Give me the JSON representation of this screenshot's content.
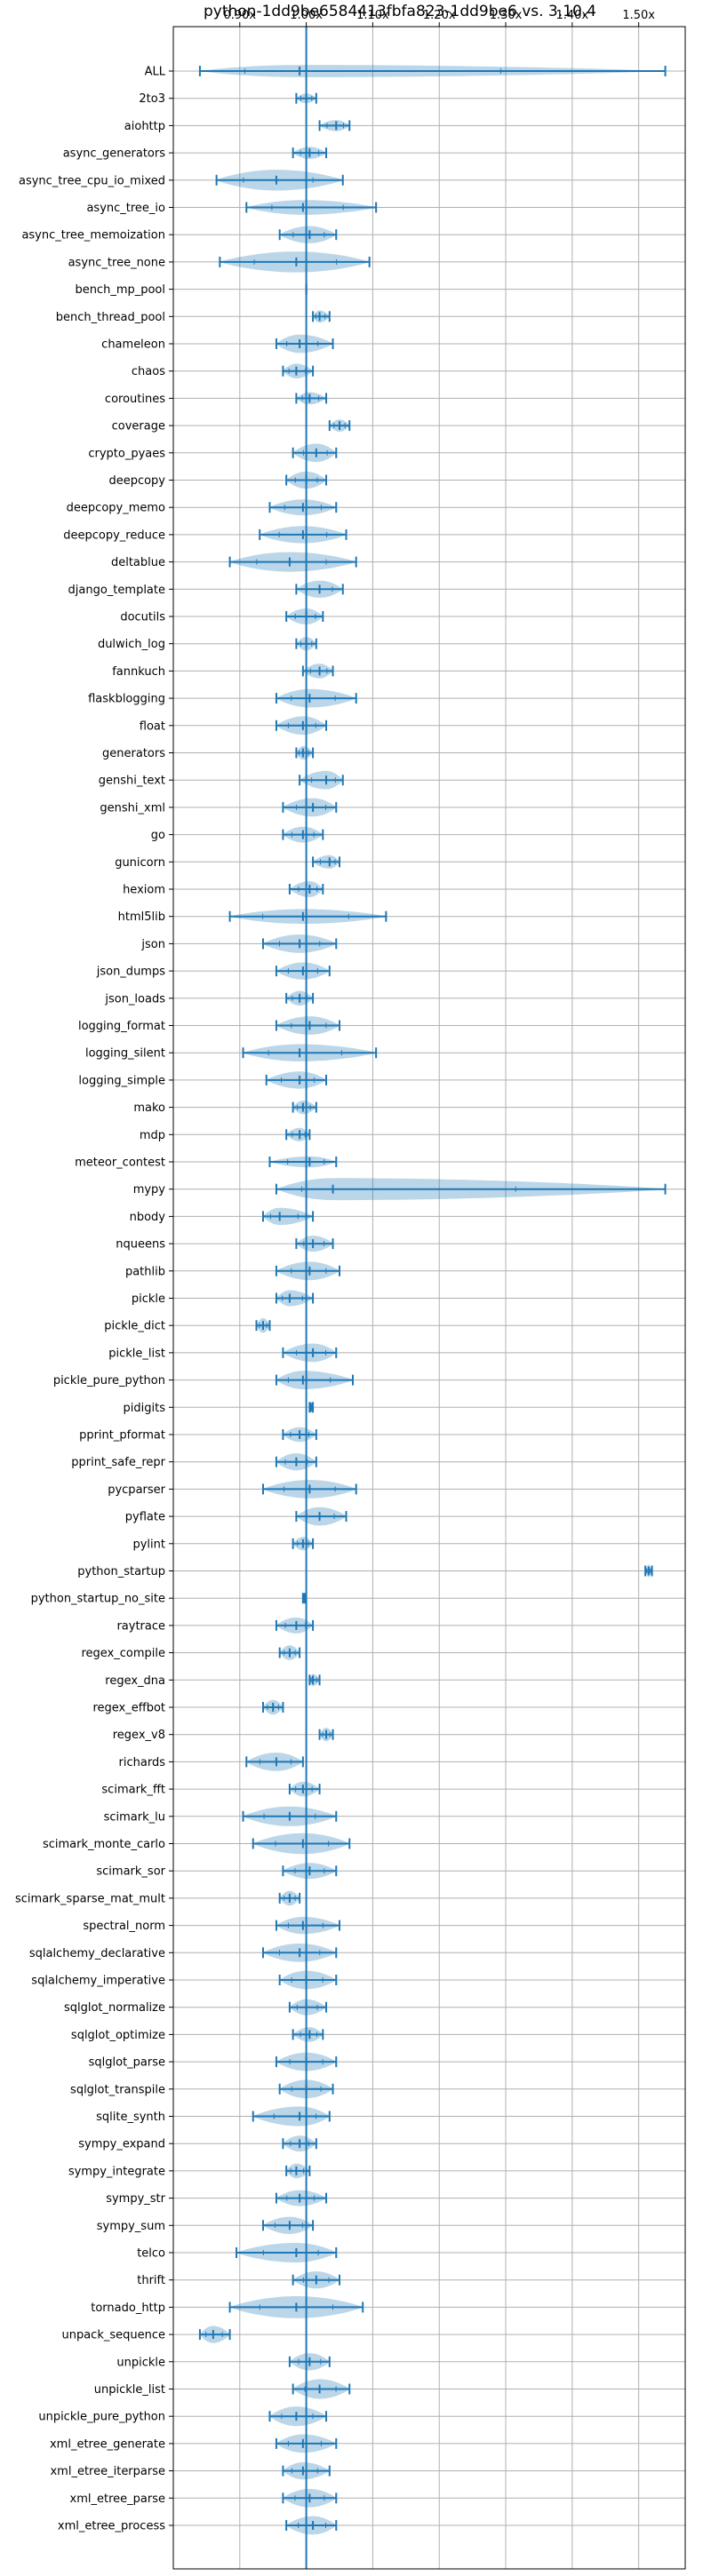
{
  "chart_data": {
    "type": "violin",
    "title": "python-1dd9be6584413fbfa823-1dd9be6 vs. 3.10.4",
    "xlabel": "",
    "ylabel": "",
    "xlim": [
      0.8,
      1.57
    ],
    "x_ticks": [
      0.9,
      1.0,
      1.1,
      1.2,
      1.3,
      1.4,
      1.5
    ],
    "x_tick_labels": [
      "0.90x",
      "1.00x",
      "1.10x",
      "1.20x",
      "1.30x",
      "1.40x",
      "1.50x"
    ],
    "x_axis_position": "top",
    "reference_value": 1.0,
    "grid": true,
    "legend": "none",
    "colors": {
      "violin": "#1f77b4",
      "reference": "#1f77b4",
      "grid": "#b0b0b0"
    },
    "categories": [
      "ALL",
      "2to3",
      "aiohttp",
      "async_generators",
      "async_tree_cpu_io_mixed",
      "async_tree_io",
      "async_tree_memoization",
      "async_tree_none",
      "bench_mp_pool",
      "bench_thread_pool",
      "chameleon",
      "chaos",
      "coroutines",
      "coverage",
      "crypto_pyaes",
      "deepcopy",
      "deepcopy_memo",
      "deepcopy_reduce",
      "deltablue",
      "django_template",
      "docutils",
      "dulwich_log",
      "fannkuch",
      "flaskblogging",
      "float",
      "generators",
      "genshi_text",
      "genshi_xml",
      "go",
      "gunicorn",
      "hexiom",
      "html5lib",
      "json",
      "json_dumps",
      "json_loads",
      "logging_format",
      "logging_silent",
      "logging_simple",
      "mako",
      "mdp",
      "meteor_contest",
      "mypy",
      "nbody",
      "nqueens",
      "pathlib",
      "pickle",
      "pickle_dict",
      "pickle_list",
      "pickle_pure_python",
      "pidigits",
      "pprint_pformat",
      "pprint_safe_repr",
      "pycparser",
      "pyflate",
      "pylint",
      "python_startup",
      "python_startup_no_site",
      "raytrace",
      "regex_compile",
      "regex_dna",
      "regex_effbot",
      "regex_v8",
      "richards",
      "scimark_fft",
      "scimark_lu",
      "scimark_monte_carlo",
      "scimark_sor",
      "scimark_sparse_mat_mult",
      "spectral_norm",
      "sqlalchemy_declarative",
      "sqlalchemy_imperative",
      "sqlglot_normalize",
      "sqlglot_optimize",
      "sqlglot_parse",
      "sqlglot_transpile",
      "sqlite_synth",
      "sympy_expand",
      "sympy_integrate",
      "sympy_str",
      "sympy_sum",
      "telco",
      "thrift",
      "tornado_http",
      "unpack_sequence",
      "unpickle",
      "unpickle_list",
      "unpickle_pure_python",
      "xml_etree_generate",
      "xml_etree_iterparse",
      "xml_etree_parse",
      "xml_etree_process"
    ],
    "series": [
      {
        "min": 0.84,
        "max": 1.54,
        "median": 0.99,
        "width": 0.5
      },
      {
        "min": 0.985,
        "max": 1.015,
        "median": 1.0,
        "width": 0.4
      },
      {
        "min": 1.02,
        "max": 1.065,
        "median": 1.045,
        "width": 0.45
      },
      {
        "min": 0.98,
        "max": 1.03,
        "median": 1.005,
        "width": 0.5
      },
      {
        "min": 0.865,
        "max": 1.055,
        "median": 0.955,
        "width": 0.85
      },
      {
        "min": 0.91,
        "max": 1.105,
        "median": 0.995,
        "width": 0.6
      },
      {
        "min": 0.96,
        "max": 1.045,
        "median": 1.005,
        "width": 0.7
      },
      {
        "min": 0.87,
        "max": 1.095,
        "median": 0.985,
        "width": 0.85
      },
      {
        "min": 1.0,
        "max": 1.0,
        "median": 1.0,
        "width": 0.0
      },
      {
        "min": 1.01,
        "max": 1.035,
        "median": 1.02,
        "width": 0.5
      },
      {
        "min": 0.955,
        "max": 1.04,
        "median": 0.99,
        "width": 0.75
      },
      {
        "min": 0.965,
        "max": 1.01,
        "median": 0.985,
        "width": 0.6
      },
      {
        "min": 0.985,
        "max": 1.03,
        "median": 1.005,
        "width": 0.5
      },
      {
        "min": 1.035,
        "max": 1.065,
        "median": 1.05,
        "width": 0.5
      },
      {
        "min": 0.98,
        "max": 1.045,
        "median": 1.015,
        "width": 0.75
      },
      {
        "min": 0.97,
        "max": 1.03,
        "median": 1.0,
        "width": 0.7
      },
      {
        "min": 0.945,
        "max": 1.045,
        "median": 0.995,
        "width": 0.65
      },
      {
        "min": 0.93,
        "max": 1.06,
        "median": 0.995,
        "width": 0.7
      },
      {
        "min": 0.885,
        "max": 1.075,
        "median": 0.975,
        "width": 0.8
      },
      {
        "min": 0.985,
        "max": 1.055,
        "median": 1.02,
        "width": 0.7
      },
      {
        "min": 0.97,
        "max": 1.025,
        "median": 1.0,
        "width": 0.65
      },
      {
        "min": 0.985,
        "max": 1.015,
        "median": 1.0,
        "width": 0.55
      },
      {
        "min": 0.995,
        "max": 1.04,
        "median": 1.02,
        "width": 0.6
      },
      {
        "min": 0.955,
        "max": 1.075,
        "median": 1.005,
        "width": 0.75
      },
      {
        "min": 0.955,
        "max": 1.03,
        "median": 0.995,
        "width": 0.75
      },
      {
        "min": 0.985,
        "max": 1.01,
        "median": 0.995,
        "width": 0.55
      },
      {
        "min": 0.99,
        "max": 1.055,
        "median": 1.03,
        "width": 0.75
      },
      {
        "min": 0.965,
        "max": 1.045,
        "median": 1.01,
        "width": 0.75
      },
      {
        "min": 0.965,
        "max": 1.025,
        "median": 0.995,
        "width": 0.65
      },
      {
        "min": 1.01,
        "max": 1.05,
        "median": 1.035,
        "width": 0.55
      },
      {
        "min": 0.975,
        "max": 1.025,
        "median": 1.005,
        "width": 0.65
      },
      {
        "min": 0.885,
        "max": 1.12,
        "median": 0.995,
        "width": 0.6
      },
      {
        "min": 0.935,
        "max": 1.045,
        "median": 0.99,
        "width": 0.75
      },
      {
        "min": 0.955,
        "max": 1.035,
        "median": 0.995,
        "width": 0.7
      },
      {
        "min": 0.97,
        "max": 1.01,
        "median": 0.99,
        "width": 0.6
      },
      {
        "min": 0.955,
        "max": 1.05,
        "median": 1.005,
        "width": 0.75
      },
      {
        "min": 0.905,
        "max": 1.105,
        "median": 0.99,
        "width": 0.7
      },
      {
        "min": 0.94,
        "max": 1.03,
        "median": 0.99,
        "width": 0.7
      },
      {
        "min": 0.98,
        "max": 1.015,
        "median": 0.995,
        "width": 0.55
      },
      {
        "min": 0.97,
        "max": 1.005,
        "median": 0.99,
        "width": 0.55
      },
      {
        "min": 0.945,
        "max": 1.045,
        "median": 1.005,
        "width": 0.45
      },
      {
        "min": 0.955,
        "max": 1.54,
        "median": 1.04,
        "width": 0.9
      },
      {
        "min": 0.935,
        "max": 1.01,
        "median": 0.96,
        "width": 0.7
      },
      {
        "min": 0.985,
        "max": 1.04,
        "median": 1.01,
        "width": 0.65
      },
      {
        "min": 0.955,
        "max": 1.05,
        "median": 1.005,
        "width": 0.75
      },
      {
        "min": 0.955,
        "max": 1.01,
        "median": 0.975,
        "width": 0.65
      },
      {
        "min": 0.925,
        "max": 0.945,
        "median": 0.935,
        "width": 0.6
      },
      {
        "min": 0.965,
        "max": 1.045,
        "median": 1.01,
        "width": 0.75
      },
      {
        "min": 0.955,
        "max": 1.07,
        "median": 0.995,
        "width": 0.75
      },
      {
        "min": 1.005,
        "max": 1.01,
        "median": 1.007,
        "width": 0.45
      },
      {
        "min": 0.965,
        "max": 1.015,
        "median": 0.99,
        "width": 0.6
      },
      {
        "min": 0.955,
        "max": 1.015,
        "median": 0.985,
        "width": 0.7
      },
      {
        "min": 0.935,
        "max": 1.075,
        "median": 1.005,
        "width": 0.75
      },
      {
        "min": 0.985,
        "max": 1.06,
        "median": 1.02,
        "width": 0.75
      },
      {
        "min": 0.98,
        "max": 1.01,
        "median": 0.995,
        "width": 0.55
      },
      {
        "min": 1.51,
        "max": 1.52,
        "median": 1.515,
        "width": 0.5
      },
      {
        "min": 0.995,
        "max": 0.998,
        "median": 0.996,
        "width": 0.4
      },
      {
        "min": 0.955,
        "max": 1.01,
        "median": 0.985,
        "width": 0.65
      },
      {
        "min": 0.96,
        "max": 0.99,
        "median": 0.975,
        "width": 0.6
      },
      {
        "min": 1.005,
        "max": 1.02,
        "median": 1.01,
        "width": 0.5
      },
      {
        "min": 0.935,
        "max": 0.965,
        "median": 0.95,
        "width": 0.6
      },
      {
        "min": 1.02,
        "max": 1.04,
        "median": 1.03,
        "width": 0.55
      },
      {
        "min": 0.91,
        "max": 0.995,
        "median": 0.955,
        "width": 0.75
      },
      {
        "min": 0.975,
        "max": 1.02,
        "median": 0.995,
        "width": 0.6
      },
      {
        "min": 0.905,
        "max": 1.045,
        "median": 0.975,
        "width": 0.8
      },
      {
        "min": 0.92,
        "max": 1.065,
        "median": 0.995,
        "width": 0.85
      },
      {
        "min": 0.965,
        "max": 1.045,
        "median": 1.005,
        "width": 0.65
      },
      {
        "min": 0.96,
        "max": 0.99,
        "median": 0.975,
        "width": 0.6
      },
      {
        "min": 0.955,
        "max": 1.05,
        "median": 0.995,
        "width": 0.7
      },
      {
        "min": 0.935,
        "max": 1.045,
        "median": 0.99,
        "width": 0.75
      },
      {
        "min": 0.96,
        "max": 1.045,
        "median": 1.0,
        "width": 0.75
      },
      {
        "min": 0.975,
        "max": 1.03,
        "median": 1.0,
        "width": 0.65
      },
      {
        "min": 0.98,
        "max": 1.025,
        "median": 1.005,
        "width": 0.6
      },
      {
        "min": 0.955,
        "max": 1.045,
        "median": 1.0,
        "width": 0.75
      },
      {
        "min": 0.96,
        "max": 1.04,
        "median": 1.0,
        "width": 0.75
      },
      {
        "min": 0.92,
        "max": 1.035,
        "median": 0.99,
        "width": 0.8
      },
      {
        "min": 0.965,
        "max": 1.015,
        "median": 0.99,
        "width": 0.65
      },
      {
        "min": 0.97,
        "max": 1.005,
        "median": 0.985,
        "width": 0.6
      },
      {
        "min": 0.955,
        "max": 1.03,
        "median": 0.99,
        "width": 0.65
      },
      {
        "min": 0.935,
        "max": 1.01,
        "median": 0.975,
        "width": 0.7
      },
      {
        "min": 0.895,
        "max": 1.045,
        "median": 0.985,
        "width": 0.8
      },
      {
        "min": 0.98,
        "max": 1.05,
        "median": 1.015,
        "width": 0.7
      },
      {
        "min": 0.885,
        "max": 1.085,
        "median": 0.985,
        "width": 0.9
      },
      {
        "min": 0.84,
        "max": 0.885,
        "median": 0.86,
        "width": 0.7
      },
      {
        "min": 0.975,
        "max": 1.035,
        "median": 1.005,
        "width": 0.7
      },
      {
        "min": 0.98,
        "max": 1.065,
        "median": 1.02,
        "width": 0.8
      },
      {
        "min": 0.945,
        "max": 1.03,
        "median": 0.985,
        "width": 0.8
      },
      {
        "min": 0.955,
        "max": 1.045,
        "median": 0.995,
        "width": 0.75
      },
      {
        "min": 0.965,
        "max": 1.035,
        "median": 0.995,
        "width": 0.7
      },
      {
        "min": 0.965,
        "max": 1.045,
        "median": 1.005,
        "width": 0.75
      },
      {
        "min": 0.97,
        "max": 1.045,
        "median": 1.01,
        "width": 0.75
      }
    ]
  }
}
